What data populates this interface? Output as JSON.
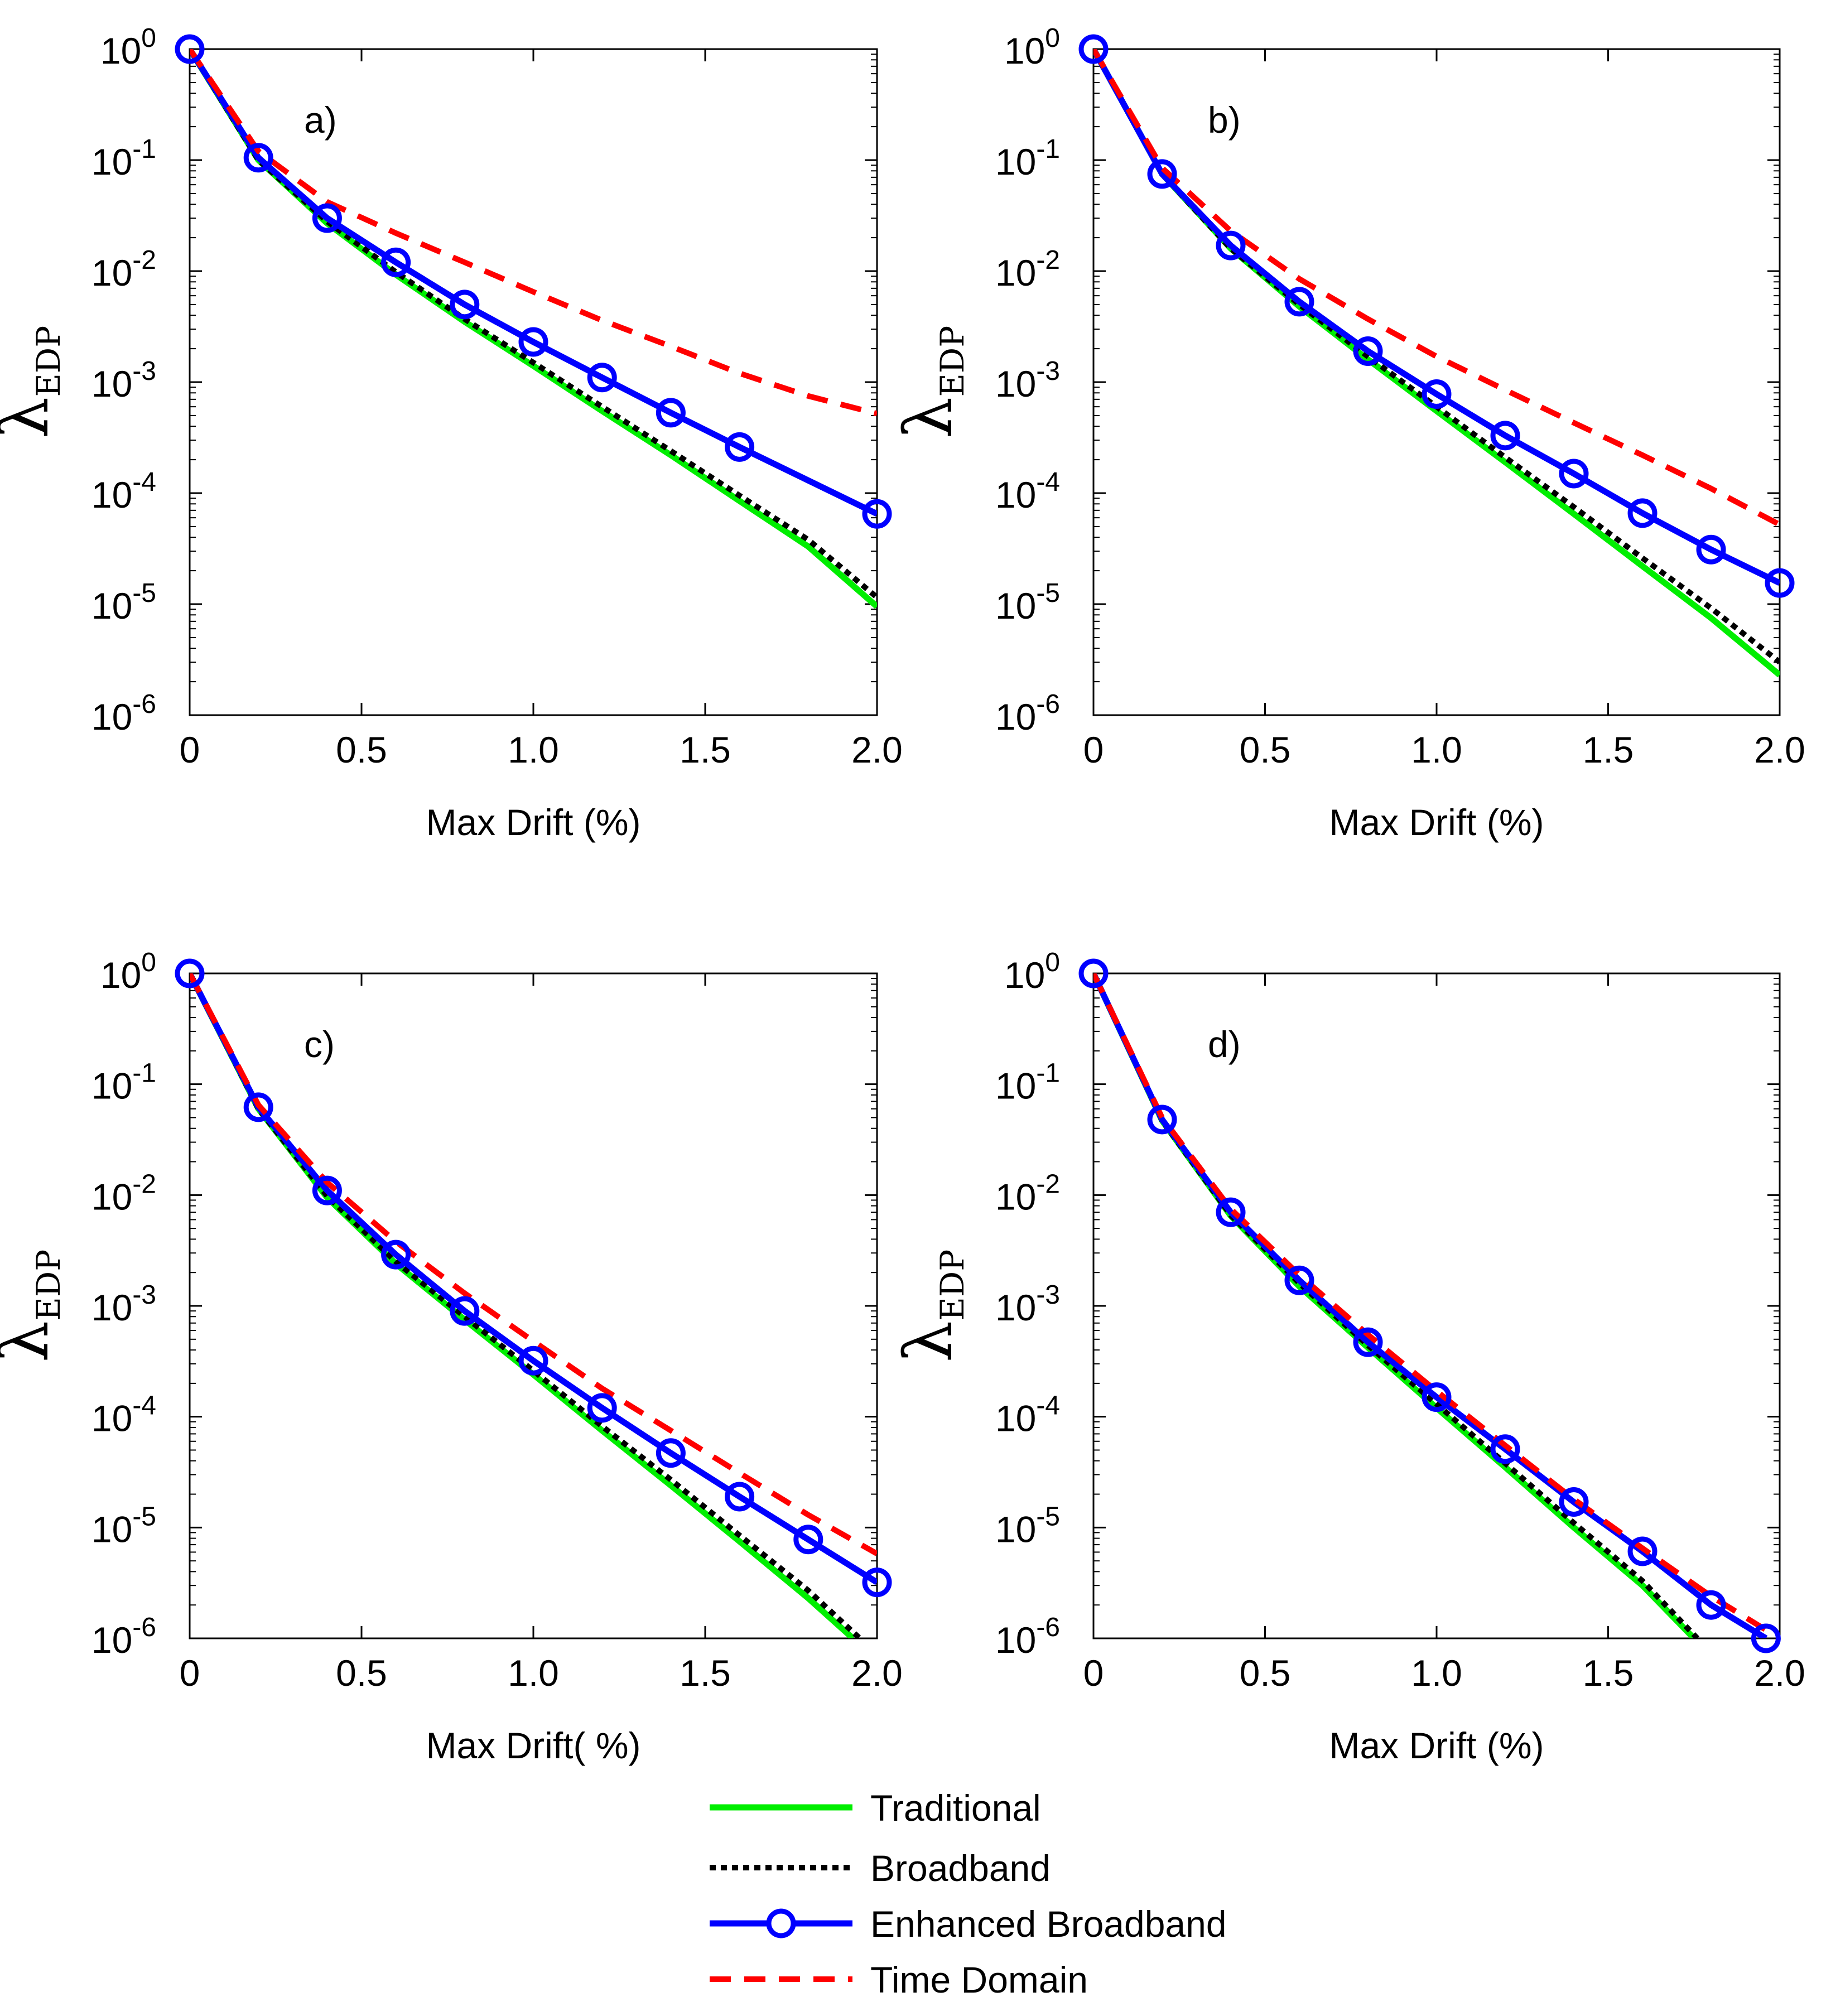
{
  "chart_data": [
    {
      "type": "line",
      "panel_label": "a)",
      "xlabel": "Max Drift (%)",
      "ylabel_main": "λ",
      "ylabel_sub": "EDP",
      "yscale": "log",
      "xlim": [
        0,
        2.0
      ],
      "ylim": [
        1e-06,
        1
      ],
      "xticks": [
        "0",
        "0.5",
        "1.0",
        "1.5",
        "2.0"
      ],
      "yticks": [
        {
          "base": "10",
          "exp": "0"
        },
        {
          "base": "10",
          "exp": "-1"
        },
        {
          "base": "10",
          "exp": "-2"
        },
        {
          "base": "10",
          "exp": "-3"
        },
        {
          "base": "10",
          "exp": "-4"
        },
        {
          "base": "10",
          "exp": "-5"
        },
        {
          "base": "10",
          "exp": "-6"
        }
      ],
      "series": [
        {
          "name": "Traditional",
          "color": "#00ee00",
          "style": "solid",
          "x": [
            0,
            0.2,
            0.4,
            0.6,
            0.8,
            1.0,
            1.2,
            1.4,
            1.6,
            1.8,
            2.0
          ],
          "y": [
            1,
            0.1,
            0.027,
            0.0093,
            0.0035,
            0.0014,
            0.00055,
            0.00022,
            8.5e-05,
            3.3e-05,
            9.5e-06
          ]
        },
        {
          "name": "Broadband",
          "color": "#000000",
          "style": "dotted",
          "x": [
            0,
            0.2,
            0.4,
            0.6,
            0.8,
            1.0,
            1.2,
            1.4,
            1.6,
            1.8,
            2.0
          ],
          "y": [
            1,
            0.1,
            0.028,
            0.0098,
            0.0037,
            0.0015,
            0.0006,
            0.00024,
            9.5e-05,
            3.8e-05,
            1.15e-05
          ]
        },
        {
          "name": "Enhanced Broadband",
          "color": "#0000ff",
          "style": "solid-marker",
          "x": [
            0,
            0.2,
            0.4,
            0.6,
            0.8,
            1.0,
            1.2,
            1.4,
            1.6,
            2.0
          ],
          "y": [
            1,
            0.105,
            0.03,
            0.012,
            0.005,
            0.0023,
            0.0011,
            0.00053,
            0.00026,
            6.5e-05
          ]
        },
        {
          "name": "Time Domain",
          "color": "#ff0000",
          "style": "dashed",
          "x": [
            0,
            0.2,
            0.4,
            0.6,
            0.8,
            1.0,
            1.2,
            1.4,
            1.6,
            1.8,
            2.0
          ],
          "y": [
            1,
            0.12,
            0.042,
            0.022,
            0.012,
            0.0065,
            0.0036,
            0.0021,
            0.0012,
            0.00075,
            0.00052
          ]
        }
      ]
    },
    {
      "type": "line",
      "panel_label": "b)",
      "xlabel": "Max Drift (%)",
      "ylabel_main": "λ",
      "ylabel_sub": "EDP",
      "yscale": "log",
      "xlim": [
        0,
        2.0
      ],
      "ylim": [
        1e-06,
        1
      ],
      "xticks": [
        "0",
        "0.5",
        "1.0",
        "1.5",
        "2.0"
      ],
      "yticks": [
        {
          "base": "10",
          "exp": "0"
        },
        {
          "base": "10",
          "exp": "-1"
        },
        {
          "base": "10",
          "exp": "-2"
        },
        {
          "base": "10",
          "exp": "-3"
        },
        {
          "base": "10",
          "exp": "-4"
        },
        {
          "base": "10",
          "exp": "-5"
        },
        {
          "base": "10",
          "exp": "-6"
        }
      ],
      "series": [
        {
          "name": "Traditional",
          "color": "#00ee00",
          "style": "solid",
          "x": [
            0,
            0.2,
            0.4,
            0.6,
            0.8,
            1.0,
            1.2,
            1.4,
            1.6,
            1.8,
            2.0
          ],
          "y": [
            1,
            0.075,
            0.016,
            0.0048,
            0.0016,
            0.00055,
            0.00019,
            6.5e-05,
            2.2e-05,
            7.5e-06,
            2.3e-06
          ]
        },
        {
          "name": "Broadband",
          "color": "#000000",
          "style": "dotted",
          "x": [
            0,
            0.2,
            0.4,
            0.6,
            0.8,
            1.0,
            1.2,
            1.4,
            1.6,
            1.8,
            2.0
          ],
          "y": [
            1,
            0.075,
            0.016,
            0.005,
            0.0017,
            0.0006,
            0.00021,
            7.5e-05,
            2.6e-05,
            9.2e-06,
            3e-06
          ]
        },
        {
          "name": "Enhanced Broadband",
          "color": "#0000ff",
          "style": "solid-marker",
          "x": [
            0,
            0.2,
            0.4,
            0.6,
            0.8,
            1.0,
            1.2,
            1.4,
            1.6,
            1.8,
            2.0
          ],
          "y": [
            1,
            0.075,
            0.017,
            0.0053,
            0.0019,
            0.00078,
            0.00033,
            0.00015,
            6.6e-05,
            3.1e-05,
            1.55e-05
          ]
        },
        {
          "name": "Time Domain",
          "color": "#ff0000",
          "style": "dashed",
          "x": [
            0,
            0.2,
            0.4,
            0.6,
            0.8,
            1.0,
            1.2,
            1.4,
            1.6,
            1.8,
            2.0
          ],
          "y": [
            1,
            0.085,
            0.023,
            0.0085,
            0.0037,
            0.0017,
            0.00085,
            0.00043,
            0.00022,
            0.00011,
            5.2e-05
          ]
        }
      ]
    },
    {
      "type": "line",
      "panel_label": "c)",
      "xlabel": "Max Drift( %)",
      "ylabel_main": "λ",
      "ylabel_sub": "EDP",
      "yscale": "log",
      "xlim": [
        0,
        2.0
      ],
      "ylim": [
        1e-06,
        1
      ],
      "xticks": [
        "0",
        "0.5",
        "1.0",
        "1.5",
        "2.0"
      ],
      "yticks": [
        {
          "base": "10",
          "exp": "0"
        },
        {
          "base": "10",
          "exp": "-1"
        },
        {
          "base": "10",
          "exp": "-2"
        },
        {
          "base": "10",
          "exp": "-3"
        },
        {
          "base": "10",
          "exp": "-4"
        },
        {
          "base": "10",
          "exp": "-5"
        },
        {
          "base": "10",
          "exp": "-6"
        }
      ],
      "series": [
        {
          "name": "Traditional",
          "color": "#00ee00",
          "style": "solid",
          "x": [
            0,
            0.2,
            0.4,
            0.6,
            0.8,
            1.0,
            1.2,
            1.4,
            1.6,
            1.8,
            1.93
          ],
          "y": [
            1,
            0.06,
            0.0095,
            0.0024,
            0.00075,
            0.00024,
            7.5e-05,
            2.4e-05,
            7.5e-06,
            2.3e-06,
            1e-06
          ]
        },
        {
          "name": "Broadband",
          "color": "#000000",
          "style": "dotted",
          "x": [
            0,
            0.2,
            0.4,
            0.6,
            0.8,
            1.0,
            1.2,
            1.4,
            1.6,
            1.8,
            1.95
          ],
          "y": [
            1,
            0.06,
            0.0098,
            0.0025,
            0.0008,
            0.00026,
            8.2e-05,
            2.7e-05,
            8.5e-06,
            2.7e-06,
            1e-06
          ]
        },
        {
          "name": "Enhanced Broadband",
          "color": "#0000ff",
          "style": "solid-marker",
          "x": [
            0,
            0.2,
            0.4,
            0.6,
            0.8,
            1.0,
            1.2,
            1.4,
            1.6,
            1.8,
            2.0
          ],
          "y": [
            1,
            0.062,
            0.011,
            0.0029,
            0.0009,
            0.00032,
            0.00012,
            4.7e-05,
            1.9e-05,
            7.8e-06,
            3.2e-06
          ]
        },
        {
          "name": "Time Domain",
          "color": "#ff0000",
          "style": "dashed",
          "x": [
            0,
            0.2,
            0.4,
            0.6,
            0.8,
            1.0,
            1.2,
            1.4,
            1.6,
            1.8,
            2.0
          ],
          "y": [
            1,
            0.065,
            0.013,
            0.0038,
            0.0013,
            0.00048,
            0.00018,
            7.5e-05,
            3.1e-05,
            1.3e-05,
            5.8e-06
          ]
        }
      ]
    },
    {
      "type": "line",
      "panel_label": "d)",
      "xlabel": "Max Drift (%)",
      "ylabel_main": "λ",
      "ylabel_sub": "EDP",
      "yscale": "log",
      "xlim": [
        0,
        2.0
      ],
      "ylim": [
        1e-06,
        1
      ],
      "xticks": [
        "0",
        "0.5",
        "1.0",
        "1.5",
        "2.0"
      ],
      "yticks": [
        {
          "base": "10",
          "exp": "0"
        },
        {
          "base": "10",
          "exp": "-1"
        },
        {
          "base": "10",
          "exp": "-2"
        },
        {
          "base": "10",
          "exp": "-3"
        },
        {
          "base": "10",
          "exp": "-4"
        },
        {
          "base": "10",
          "exp": "-5"
        },
        {
          "base": "10",
          "exp": "-6"
        }
      ],
      "series": [
        {
          "name": "Traditional",
          "color": "#00ee00",
          "style": "solid",
          "x": [
            0,
            0.2,
            0.4,
            0.6,
            0.8,
            1.0,
            1.2,
            1.4,
            1.6,
            1.75
          ],
          "y": [
            1,
            0.047,
            0.0065,
            0.0015,
            0.00042,
            0.00012,
            3.5e-05,
            1e-05,
            3e-06,
            1e-06
          ]
        },
        {
          "name": "Broadband",
          "color": "#000000",
          "style": "dotted",
          "x": [
            0,
            0.2,
            0.4,
            0.6,
            0.8,
            1.0,
            1.2,
            1.4,
            1.6,
            1.76
          ],
          "y": [
            1,
            0.047,
            0.0066,
            0.0016,
            0.00044,
            0.00013,
            3.8e-05,
            1.1e-05,
            3.3e-06,
            1e-06
          ]
        },
        {
          "name": "Enhanced Broadband",
          "color": "#0000ff",
          "style": "solid-marker",
          "x": [
            0,
            0.2,
            0.4,
            0.6,
            0.8,
            1.0,
            1.2,
            1.4,
            1.6,
            1.8,
            1.96
          ],
          "y": [
            1,
            0.048,
            0.007,
            0.0017,
            0.00047,
            0.00015,
            5.1e-05,
            1.7e-05,
            6.1e-06,
            2e-06,
            1e-06
          ]
        },
        {
          "name": "Time Domain",
          "color": "#ff0000",
          "style": "dashed",
          "x": [
            0,
            0.2,
            0.4,
            0.6,
            0.8,
            1.0,
            1.2,
            1.4,
            1.6,
            1.8,
            2.0
          ],
          "y": [
            1,
            0.05,
            0.0075,
            0.0019,
            0.00055,
            0.00017,
            5.5e-05,
            1.8e-05,
            6.5e-06,
            2.4e-06,
            1e-06
          ]
        }
      ]
    }
  ],
  "legend": {
    "position": "bottom-center",
    "entries": [
      {
        "label": "Traditional",
        "color": "#00ee00",
        "style": "solid"
      },
      {
        "label": "Broadband",
        "color": "#000000",
        "style": "dotted"
      },
      {
        "label": "Enhanced Broadband",
        "color": "#0000ff",
        "style": "solid-marker"
      },
      {
        "label": "Time Domain",
        "color": "#ff0000",
        "style": "dashed"
      }
    ]
  }
}
